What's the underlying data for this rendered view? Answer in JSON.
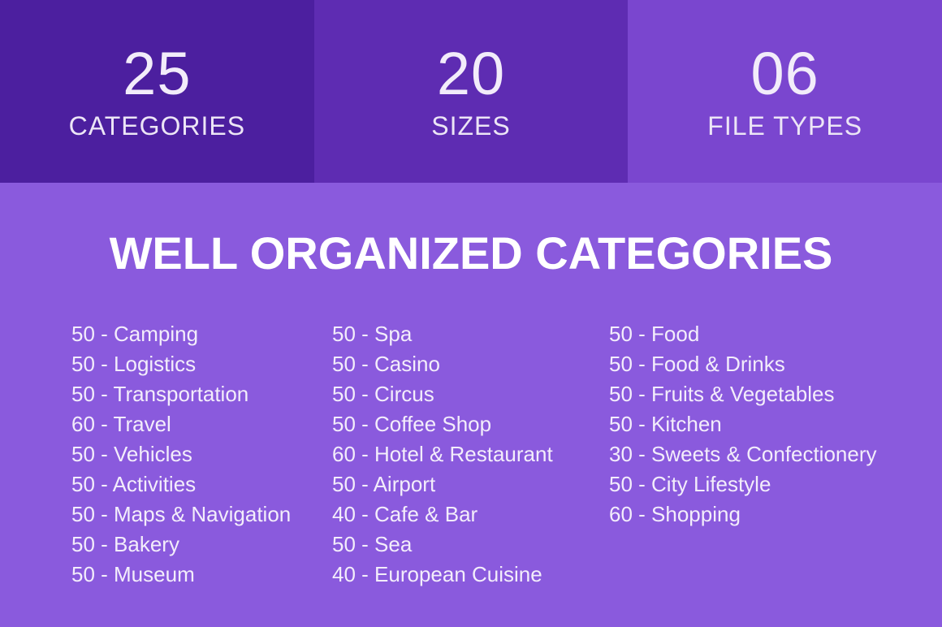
{
  "stats": [
    {
      "value": "25",
      "label": "CATEGORIES",
      "bg_color": "#4c1f9f"
    },
    {
      "value": "20",
      "label": "SIZES",
      "bg_color": "#5e2cb2"
    },
    {
      "value": "06",
      "label": "FILE TYPES",
      "bg_color": "#7a46cf"
    }
  ],
  "heading": "WELL ORGANIZED CATEGORIES",
  "columns": [
    {
      "items": [
        "50 - Camping",
        "50 - Logistics",
        "50 - Transportation",
        "60 - Travel",
        "50 - Vehicles",
        "50 - Activities",
        "50 - Maps & Navigation",
        "50 - Bakery",
        "50 - Museum"
      ]
    },
    {
      "items": [
        "50 - Spa",
        "50 - Casino",
        "50 - Circus",
        "50 - Coffee Shop",
        "60 - Hotel & Restaurant",
        "50 - Airport",
        "40 - Cafe & Bar",
        "50 - Sea",
        "40 - European Cuisine"
      ]
    },
    {
      "items": [
        "50 - Food",
        "50 - Food & Drinks",
        "50 - Fruits & Vegetables",
        "50 - Kitchen",
        "30 - Sweets & Confectionery",
        "50 - City Lifestyle",
        "60 - Shopping"
      ]
    }
  ],
  "colors": {
    "background": "#8a5add",
    "stat_box_dark": "#4c1f9f",
    "stat_box_medium": "#5e2cb2",
    "stat_box_light": "#7a46cf",
    "heading_text": "#ffffff",
    "body_text": "#f3edfb"
  }
}
